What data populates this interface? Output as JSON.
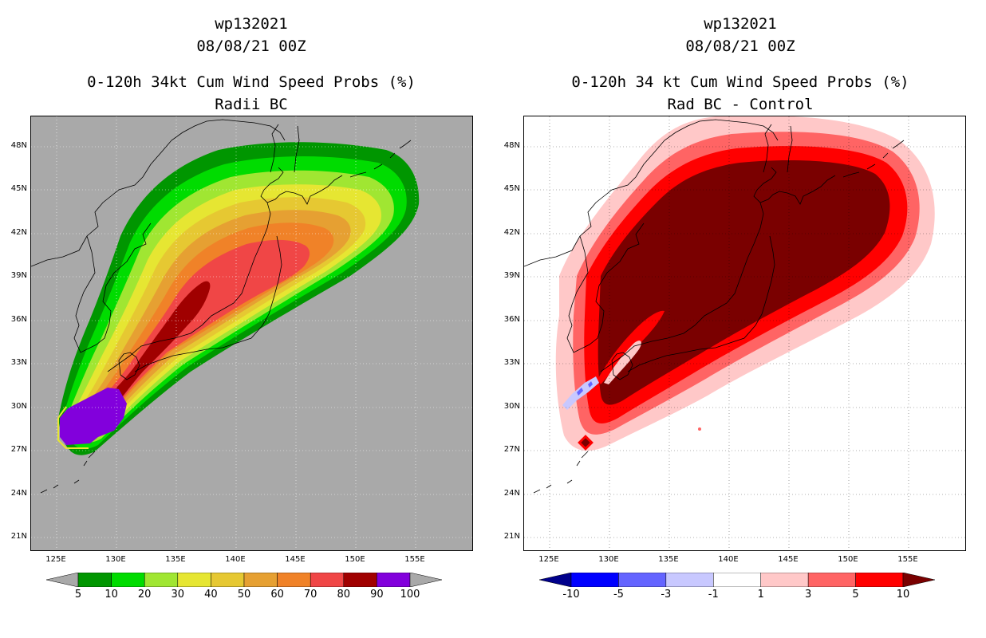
{
  "left_panel": {
    "storm_id": "wp132021",
    "datetime": "08/08/21 00Z",
    "title": "0-120h 34kt Cum Wind Speed Probs (%)",
    "subtitle": "Radii BC",
    "background_color": "#a9a9a9",
    "colorbar": {
      "colors": [
        "#009600",
        "#00dc00",
        "#a0e632",
        "#e6e632",
        "#e6c832",
        "#e6a032",
        "#f08228",
        "#f04646",
        "#a00000",
        "#8200dc"
      ],
      "labels": [
        "5",
        "10",
        "20",
        "30",
        "40",
        "50",
        "60",
        "70",
        "80",
        "90",
        "100"
      ],
      "under_color": "#a9a9a9",
      "over_color": "#a9a9a9"
    }
  },
  "right_panel": {
    "storm_id": "wp132021",
    "datetime": "08/08/21 00Z",
    "title": "0-120h 34 kt Cum Wind Speed Probs (%)",
    "subtitle": "Rad BC - Control",
    "background_color": "#ffffff",
    "colorbar": {
      "colors": [
        "#0000ff",
        "#6464ff",
        "#c8c8ff",
        "#ffffff",
        "#ffc8c8",
        "#ff6464",
        "#ff0000"
      ],
      "labels": [
        "-10",
        "-5",
        "-3",
        "-1",
        "1",
        "3",
        "5",
        "10"
      ],
      "under_color": "#00008b",
      "over_color": "#7a0000"
    }
  },
  "axes": {
    "lat_labels": [
      "48N",
      "45N",
      "42N",
      "39N",
      "36N",
      "33N",
      "30N",
      "27N",
      "24N",
      "21N"
    ],
    "lon_labels": [
      "125E",
      "130E",
      "135E",
      "140E",
      "145E",
      "150E",
      "155E"
    ]
  }
}
